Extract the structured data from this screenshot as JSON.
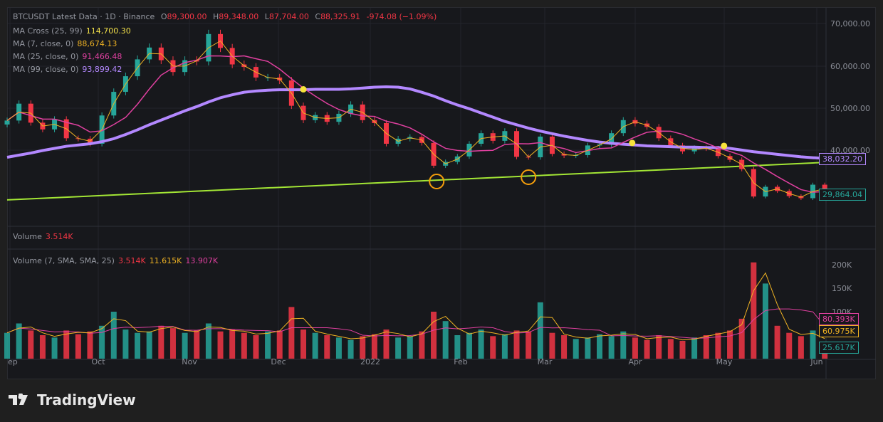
{
  "header": {
    "symbol": "BTCUSDT Latest Data · 1D · Binance",
    "o_label": "O",
    "o": "89,300.00",
    "h_label": "H",
    "h": "89,348.00",
    "l_label": "L",
    "l": "87,704.00",
    "c_label": "C",
    "c": "88,325.91",
    "change": "-974.08 (−1.09%)"
  },
  "indicators": [
    {
      "label": "MA Cross (25, 99)",
      "value": "114,700.30",
      "color": "#f2e04a"
    },
    {
      "label": "MA (7, close, 0)",
      "value": "88,674.13",
      "color": "#f0b323"
    },
    {
      "label": "MA (25, close, 0)",
      "value": "91,466.48",
      "color": "#e040a0"
    },
    {
      "label": "MA (99, close, 0)",
      "value": "93,899.42",
      "color": "#b388ff"
    }
  ],
  "volume_pane": {
    "label": "Volume",
    "value": "3.514K",
    "sma_label": "Volume (7, SMA, SMA, 25)",
    "v1": "3.514K",
    "v2": "11.615K",
    "v3": "13.907K"
  },
  "price_axis": [
    "70,000.00",
    "60,000.00",
    "50,000.00",
    "40,000.00"
  ],
  "volume_axis": [
    "200K",
    "150K",
    "100K"
  ],
  "price_tags": {
    "ma99": "38,032.20",
    "last": "29,864.04"
  },
  "volume_tags": {
    "sma25": "80.393K",
    "sma7": "60.975K",
    "last": "25.617K"
  },
  "time_axis": [
    "ep",
    "Oct",
    "Nov",
    "Dec",
    "2022",
    "Feb",
    "Mar",
    "Apr",
    "May",
    "Jun"
  ],
  "brand": "TradingView",
  "colors": {
    "up": "#26a69a",
    "down": "#f23645",
    "ma7": "#f0b323",
    "ma25": "#e040a0",
    "ma99": "#b388ff",
    "trend": "#a3e635"
  },
  "chart_data": {
    "type": "candlestick",
    "title": "BTCUSDT 1D",
    "x_start": "2021-09-01",
    "x_step_days": 4,
    "ylim": [
      25000,
      72000
    ],
    "close": [
      47000,
      51000,
      46500,
      44900,
      47300,
      42800,
      42700,
      41500,
      48200,
      53800,
      57500,
      61500,
      64300,
      61300,
      58500,
      61300,
      61000,
      67500,
      64200,
      60300,
      59700,
      57200,
      57200,
      56500,
      50500,
      47100,
      48300,
      46700,
      48600,
      50800,
      47100,
      46400,
      41500,
      42700,
      43100,
      41700,
      36300,
      37200,
      38500,
      41500,
      44000,
      42200,
      44500,
      38400,
      38300,
      43200,
      39100,
      38700,
      38800,
      41100,
      41300,
      44000,
      47100,
      46300,
      45500,
      42800,
      41100,
      39700,
      40500,
      40400,
      38600,
      37700,
      35500,
      29000,
      31300,
      30300,
      29100,
      28600,
      31800,
      29864
    ],
    "ma99": [
      38300,
      38800,
      39300,
      39900,
      40400,
      40900,
      41200,
      41500,
      42000,
      42700,
      43700,
      44800,
      46000,
      47100,
      48200,
      49300,
      50300,
      51400,
      52400,
      53100,
      53700,
      54000,
      54200,
      54300,
      54300,
      54300,
      54400,
      54400,
      54400,
      54500,
      54700,
      54900,
      55000,
      54900,
      54500,
      53700,
      52800,
      51700,
      50700,
      49800,
      48800,
      47800,
      46800,
      46000,
      45200,
      44500,
      43900,
      43300,
      42800,
      42300,
      41900,
      41600,
      41400,
      41200,
      41000,
      40900,
      40800,
      40700,
      40700,
      40600,
      40600,
      40400,
      40000,
      39600,
      39300,
      39000,
      38700,
      38400,
      38200,
      38032
    ],
    "volume_k": [
      55,
      75,
      60,
      50,
      45,
      60,
      52,
      58,
      70,
      100,
      62,
      55,
      58,
      70,
      65,
      55,
      60,
      75,
      58,
      62,
      55,
      50,
      58,
      60,
      110,
      62,
      55,
      50,
      45,
      40,
      48,
      52,
      62,
      45,
      48,
      58,
      100,
      80,
      50,
      55,
      62,
      48,
      52,
      60,
      58,
      120,
      55,
      50,
      42,
      45,
      52,
      48,
      58,
      45,
      40,
      50,
      42,
      38,
      45,
      50,
      55,
      60,
      85,
      205,
      160,
      70,
      55,
      48,
      60,
      25.6
    ],
    "trendline": {
      "start": 28200,
      "end": 37100
    },
    "ma_cross_points": [
      {
        "day": 100,
        "price": 54400
      },
      {
        "day": 211,
        "price": 41700
      },
      {
        "day": 242,
        "price": 41000
      }
    ],
    "circled_lows": [
      {
        "day": 145,
        "price": 32560
      },
      {
        "day": 176,
        "price": 33580
      }
    ],
    "volume_ylim": [
      0,
      230
    ]
  }
}
